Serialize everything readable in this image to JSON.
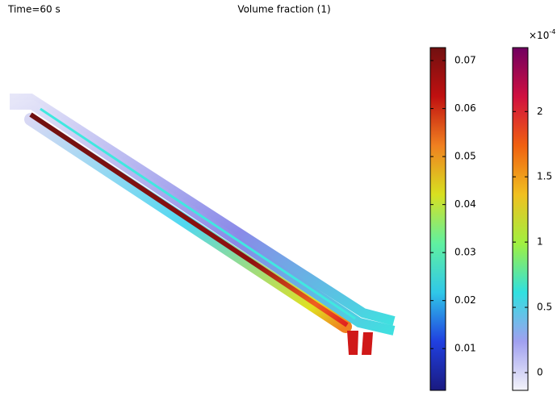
{
  "chart_data": {
    "type": "colorbars",
    "time_label": "Time=60 s",
    "title": "Volume fraction (1)",
    "colorbars": [
      {
        "colormap": [
          "#1a1a80",
          "#2040e0",
          "#30c8e8",
          "#60f0a0",
          "#d8e020",
          "#f08020",
          "#c01010",
          "#701010"
        ],
        "ylim": [
          0.0013,
          0.0727
        ],
        "yticks": [
          0.01,
          0.02,
          0.03,
          0.04,
          0.05,
          0.06,
          0.07
        ]
      },
      {
        "colormap": [
          "#f4f4fa",
          "#a0a0f0",
          "#30e0e0",
          "#a0f040",
          "#f0c020",
          "#f06010",
          "#d01040",
          "#700060"
        ],
        "ylim": [
          -0.136,
          2.49
        ],
        "yticks": [
          0,
          0.5,
          1,
          1.5,
          2
        ],
        "scale_base": "×10",
        "scale_exponent": "-4"
      }
    ]
  }
}
